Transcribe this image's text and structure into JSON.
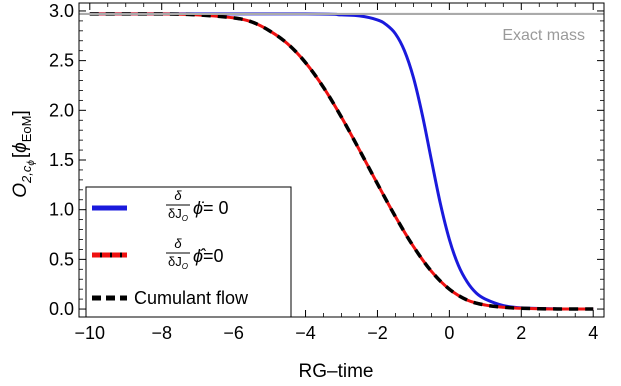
{
  "chart_data": {
    "type": "line",
    "xlabel": "RG–time",
    "ylabel_main": "O",
    "ylabel_sub": "2,c",
    "ylabel_subsub": "ϕ",
    "ylabel_arg_open": "[",
    "ylabel_arg": "ϕ",
    "ylabel_arg_sub": "EoM",
    "ylabel_arg_close": "]",
    "xlim": [
      -10.3,
      4.3
    ],
    "ylim": [
      -0.08,
      3.08
    ],
    "xticks": [
      -10,
      -8,
      -6,
      -4,
      -2,
      0,
      2,
      4
    ],
    "xtick_labels": [
      "−10",
      "−8",
      "−6",
      "−4",
      "−2",
      "0",
      "2",
      "4"
    ],
    "yticks": [
      0.0,
      0.5,
      1.0,
      1.5,
      2.0,
      2.5,
      3.0
    ],
    "ytick_labels": [
      "0.0",
      "0.5",
      "1.0",
      "1.5",
      "2.0",
      "2.5",
      "3.0"
    ],
    "minor_xtick_step": 0.5,
    "minor_ytick_step": 0.1,
    "grid": false,
    "reference_line": {
      "y": 2.97,
      "label": "Exact mass",
      "color": "#aaaaaa"
    },
    "series": [
      {
        "color": "#1a1adc",
        "dash": "solid",
        "x": [
          -10,
          -4,
          -3,
          -2.5,
          -2,
          -1.75,
          -1.5,
          -1.25,
          -1,
          -0.75,
          -0.5,
          -0.25,
          0,
          0.25,
          0.5,
          0.75,
          1,
          1.5,
          2,
          3,
          4
        ],
        "y": [
          2.97,
          2.97,
          2.96,
          2.95,
          2.91,
          2.86,
          2.77,
          2.6,
          2.33,
          1.95,
          1.5,
          1.06,
          0.7,
          0.44,
          0.27,
          0.16,
          0.1,
          0.035,
          0.012,
          0.002,
          0.0
        ]
      },
      {
        "color": "#ee1111",
        "dash": "solid",
        "x": [
          -10,
          -8,
          -7,
          -6,
          -5.5,
          -5,
          -4.5,
          -4,
          -3.5,
          -3,
          -2.5,
          -2,
          -1.5,
          -1,
          -0.5,
          0,
          0.5,
          1,
          1.5,
          2,
          2.5,
          3,
          4
        ],
        "y": [
          2.97,
          2.97,
          2.96,
          2.93,
          2.89,
          2.8,
          2.67,
          2.48,
          2.23,
          1.93,
          1.6,
          1.26,
          0.93,
          0.63,
          0.38,
          0.2,
          0.09,
          0.04,
          0.018,
          0.008,
          0.003,
          0.001,
          0.0
        ]
      },
      {
        "color": "#000000",
        "dash": "dashed",
        "x": [
          -10,
          -8,
          -7,
          -6,
          -5.5,
          -5,
          -4.5,
          -4,
          -3.5,
          -3,
          -2.5,
          -2,
          -1.5,
          -1,
          -0.5,
          0,
          0.5,
          1,
          1.5,
          2,
          2.5,
          3,
          4
        ],
        "y": [
          2.97,
          2.97,
          2.96,
          2.93,
          2.89,
          2.8,
          2.67,
          2.48,
          2.23,
          1.93,
          1.6,
          1.26,
          0.93,
          0.63,
          0.38,
          0.2,
          0.09,
          0.04,
          0.018,
          0.008,
          0.003,
          0.001,
          0.0
        ]
      }
    ],
    "legend": {
      "placement": "bottom-left",
      "entries": [
        {
          "color": "#1a1adc",
          "dash": "solid",
          "frac_num": "δ",
          "frac_den": "δJ",
          "frac_den_sub": "O",
          "symbol": "ϕ̇",
          "rest": "= 0"
        },
        {
          "color": "#ee1111",
          "dash": "red-black",
          "frac_num": "δ",
          "frac_den": "δJ",
          "frac_den_sub": "O",
          "symbol": "ϕ̂",
          "rest": "=0"
        },
        {
          "color": "#000000",
          "dash": "dashed",
          "text": "Cumulant flow"
        }
      ]
    }
  }
}
